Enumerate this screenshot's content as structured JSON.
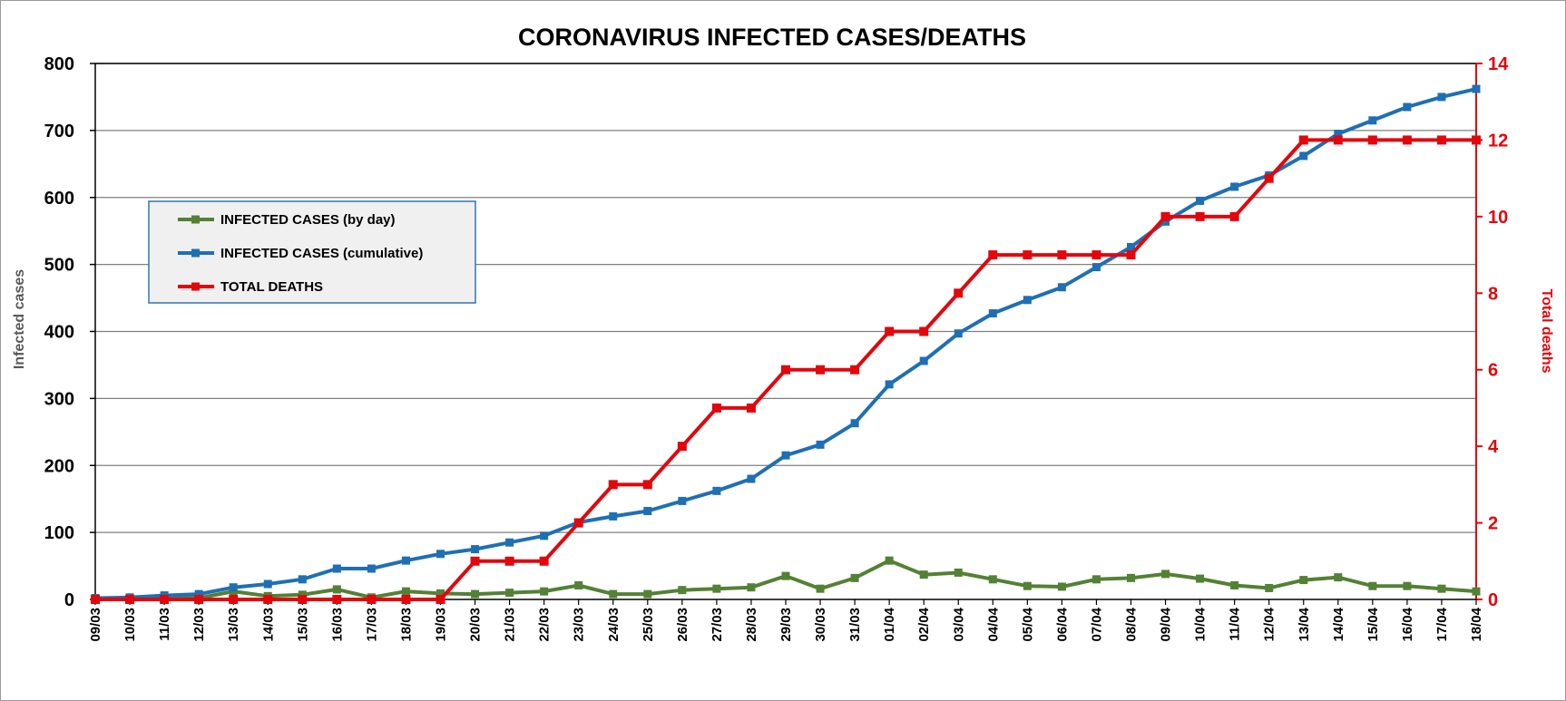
{
  "chart_data": {
    "type": "line",
    "title": "CORONAVIRUS INFECTED CASES/DEATHS",
    "ylabel": "Infected cases",
    "y2label": "Total deaths",
    "ylim": [
      0,
      800
    ],
    "y2lim": [
      0,
      14
    ],
    "yticks": [
      "0",
      "100",
      "200",
      "300",
      "400",
      "500",
      "600",
      "700",
      "800"
    ],
    "y2ticks": [
      "0",
      "2",
      "4",
      "6",
      "8",
      "10",
      "12",
      "14"
    ],
    "grid": true,
    "legend_position": "left",
    "categories": [
      "09/03",
      "10/03",
      "11/03",
      "12/03",
      "13/03",
      "14/03",
      "15/03",
      "16/03",
      "17/03",
      "18/03",
      "19/03",
      "20/03",
      "21/03",
      "22/03",
      "23/03",
      "24/03",
      "25/03",
      "26/03",
      "27/03",
      "28/03",
      "29/03",
      "30/03",
      "31/03",
      "01/04",
      "02/04",
      "03/04",
      "04/04",
      "05/04",
      "06/04",
      "07/04",
      "08/04",
      "09/04",
      "10/04",
      "11/04",
      "12/04",
      "13/04",
      "14/04",
      "15/04",
      "16/04",
      "17/04",
      "18/04"
    ],
    "series": [
      {
        "name": "INFECTED CASES (by day)",
        "axis": "left",
        "color": "#538135",
        "values": [
          2,
          1,
          3,
          2,
          12,
          5,
          7,
          15,
          3,
          12,
          9,
          8,
          10,
          12,
          21,
          8,
          8,
          14,
          16,
          18,
          35,
          16,
          32,
          58,
          37,
          40,
          30,
          20,
          19,
          30,
          32,
          38,
          31,
          21,
          17,
          29,
          33,
          20,
          20,
          16,
          12
        ]
      },
      {
        "name": "INFECTED CASES (cumulative)",
        "axis": "left",
        "color": "#1f6fb4",
        "values": [
          2,
          3,
          6,
          8,
          18,
          23,
          30,
          46,
          46,
          58,
          68,
          75,
          85,
          95,
          115,
          124,
          132,
          147,
          162,
          180,
          215,
          231,
          263,
          321,
          356,
          397,
          427,
          447,
          466,
          496,
          526,
          564,
          595,
          616,
          633,
          662,
          695,
          715,
          735,
          750,
          762
        ]
      },
      {
        "name": "TOTAL DEATHS",
        "axis": "right",
        "color": "#e3060c",
        "values": [
          0,
          0,
          0,
          0,
          0,
          0,
          0,
          0,
          0,
          0,
          0,
          1,
          1,
          1,
          2,
          3,
          3,
          4,
          5,
          5,
          6,
          6,
          6,
          7,
          7,
          8,
          9,
          9,
          9,
          9,
          9,
          10,
          10,
          10,
          11,
          12,
          12,
          12,
          12,
          12,
          12
        ]
      }
    ]
  }
}
